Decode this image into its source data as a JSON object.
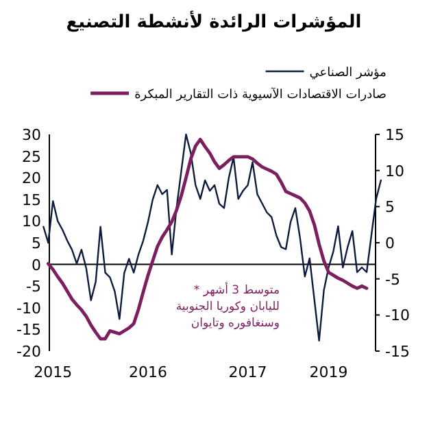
{
  "chart_data": {
    "type": "line",
    "title": "المؤشرات الرائدة لأنشطة التصنيع",
    "legend": "top",
    "categories": [
      null,
      null,
      "2015",
      null,
      null,
      null,
      null,
      null,
      null,
      null,
      null,
      null,
      null,
      null,
      null,
      null,
      null,
      null,
      null,
      null,
      null,
      null,
      "2016",
      null,
      null,
      null,
      null,
      null,
      null,
      null,
      null,
      null,
      null,
      null,
      null,
      null,
      null,
      null,
      null,
      null,
      null,
      null,
      null,
      "2017",
      null,
      null,
      null,
      null,
      null,
      null,
      null,
      null,
      null,
      null,
      null,
      null,
      null,
      null,
      null,
      null,
      "2019",
      null,
      null,
      null,
      null,
      null,
      null,
      null,
      null,
      null,
      null,
      null
    ],
    "ylim": [
      -20,
      30
    ],
    "yticks": [
      -20,
      -15,
      -10,
      -5,
      0,
      5,
      10,
      15,
      20,
      25,
      30
    ],
    "y2lim": [
      -15,
      15
    ],
    "y2ticks": [
      -15,
      -10,
      -5,
      0,
      5,
      10,
      15
    ],
    "ref_lines": [
      {
        "axis": "y",
        "value": 0,
        "color": "#000000"
      }
    ],
    "annotations": [
      "* متوسط 3 أشهر\nلليابان وكوريا الجنوبية\nوسنغافوره وتايوان"
    ],
    "series": [
      {
        "name": "مؤشر الصناعي",
        "color": "#0d1b3e",
        "values": [
          8.7,
          5,
          14.6,
          10,
          8,
          5.5,
          3.4,
          0.2,
          3.4,
          -0.9,
          -8.3,
          -4,
          8.7,
          -1.9,
          -3,
          -6.2,
          -12.6,
          -2,
          1.3,
          -1.9,
          2.3,
          5.5,
          9.8,
          15,
          18.3,
          16.2,
          17.2,
          2.3,
          13,
          21.5,
          30,
          25.7,
          18.3,
          15.1,
          19.4,
          17,
          18.3,
          14,
          13,
          20,
          24.7,
          15.1,
          17,
          18.3,
          23.6,
          16.2,
          14.1,
          12,
          10.9,
          6.7,
          4,
          3.5,
          9.8,
          13,
          6,
          -2.8,
          1.4,
          -8.1,
          -17.6,
          -6,
          -0.7,
          3,
          8.8,
          -0.7,
          4,
          7.7,
          -1.8,
          -0.7,
          -1.8,
          6.7,
          15.1,
          19.4
        ]
      },
      {
        "name": "صادرات الاقتصادات الآسيوية ذات التقارير المبكرة",
        "color": "#7b1f5f",
        "axis": "y2",
        "values": [
          null,
          -2.9,
          -3.7,
          -4.7,
          -5.6,
          -6.7,
          -7.8,
          -8.6,
          -9.3,
          -10.2,
          -11.4,
          -12.4,
          -13.3,
          -13.3,
          -12.2,
          -12.4,
          -12.6,
          -12.2,
          -11.8,
          -11.2,
          -9.2,
          -6.8,
          -4.5,
          -2.5,
          -0.5,
          0.8,
          1.8,
          2.9,
          4.5,
          6.5,
          9,
          11.6,
          13.4,
          14.3,
          13.3,
          12.4,
          11.2,
          10.3,
          10.8,
          11.4,
          11.9,
          11.9,
          11.9,
          11.9,
          11.6,
          11,
          10.5,
          10.2,
          9.9,
          9.5,
          8.4,
          7.1,
          6.8,
          6.5,
          6.2,
          5.5,
          4.4,
          2.5,
          -0.2,
          -2.5,
          -4.1,
          -4.5,
          -4.9,
          -5.2,
          -5.6,
          -6,
          -6.3,
          -6,
          -6.3,
          null,
          null,
          null
        ]
      }
    ]
  }
}
